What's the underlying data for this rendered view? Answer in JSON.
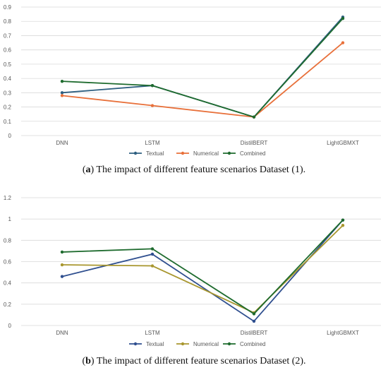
{
  "chart_data": [
    {
      "type": "line",
      "categories": [
        "DNN",
        "LSTM",
        "DistilBERT",
        "LightGBMXT"
      ],
      "ylim": [
        0,
        0.9
      ],
      "yticks": [
        "0",
        "0.1",
        "0.2",
        "0.3",
        "0.4",
        "0.5",
        "0.6",
        "0.7",
        "0.8",
        "0.9"
      ],
      "grid": true,
      "legend": "bottom",
      "series": [
        {
          "name": "Textual",
          "color": "#2e5f80",
          "values": [
            0.3,
            0.35,
            0.13,
            0.83
          ]
        },
        {
          "name": "Numerical",
          "color": "#e8703a",
          "values": [
            0.28,
            0.21,
            0.13,
            0.65
          ]
        },
        {
          "name": "Combined",
          "color": "#1e6b2e",
          "values": [
            0.38,
            0.35,
            0.13,
            0.82
          ]
        }
      ]
    },
    {
      "type": "line",
      "categories": [
        "DNN",
        "LSTM",
        "DistilBERT",
        "LightGBMXT"
      ],
      "ylim": [
        0,
        1.2
      ],
      "yticks": [
        "0",
        "0.2",
        "0.4",
        "0.6",
        "0.8",
        "1",
        "1.2"
      ],
      "grid": true,
      "legend": "bottom",
      "series": [
        {
          "name": "Textual",
          "color": "#2f4f8f",
          "values": [
            0.46,
            0.67,
            0.04,
            0.99
          ]
        },
        {
          "name": "Numerical",
          "color": "#a8962e",
          "values": [
            0.57,
            0.56,
            0.12,
            0.94
          ]
        },
        {
          "name": "Combined",
          "color": "#1e6b2e",
          "values": [
            0.69,
            0.72,
            0.11,
            0.99
          ]
        }
      ]
    }
  ],
  "captions": [
    {
      "label": "a",
      "text": ") The impact of different feature scenarios Dataset (1)."
    },
    {
      "label": "b",
      "text": ") The impact of different feature scenarios Dataset (2)."
    }
  ]
}
